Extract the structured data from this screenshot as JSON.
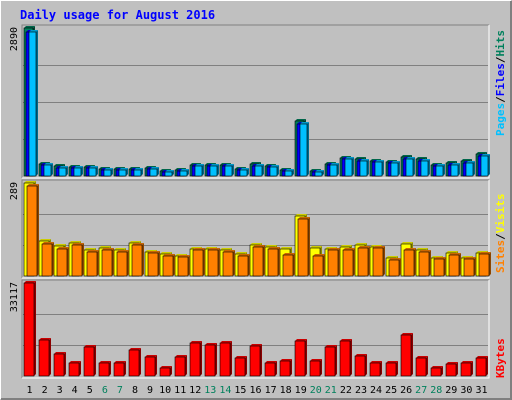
{
  "title": "Daily usage for August 2016",
  "colors": {
    "background": "#C0C0C0",
    "title": "#0000FF",
    "hits": "#00805C",
    "files": "#0000FF",
    "pages": "#00C0FF",
    "visits": "#FFFF00",
    "sites": "#FF8000",
    "kbytes": "#FF0000",
    "weekend": "#00805C",
    "weekday": "#000000"
  },
  "legend": {
    "hits": "Hits",
    "files": "Files",
    "pages": "Pages",
    "visits": "Visits",
    "sites": "Sites",
    "kbytes": "KBytes",
    "separator": "/"
  },
  "chart_data": [
    {
      "type": "bar",
      "panel": "hits-files-pages",
      "ymax_label": "2890",
      "ymax": 2890,
      "categories": [
        "1",
        "2",
        "3",
        "4",
        "5",
        "6",
        "7",
        "8",
        "9",
        "10",
        "11",
        "12",
        "13",
        "14",
        "15",
        "16",
        "17",
        "18",
        "19",
        "20",
        "21",
        "22",
        "23",
        "24",
        "25",
        "26",
        "27",
        "28",
        "29",
        "30",
        "31"
      ],
      "weekend_days": [
        "6",
        "7",
        "13",
        "14",
        "20",
        "21",
        "27",
        "28"
      ],
      "series": [
        {
          "key": "hits",
          "values": [
            2890,
            240,
            190,
            180,
            180,
            130,
            130,
            130,
            160,
            90,
            110,
            210,
            210,
            210,
            130,
            240,
            200,
            120,
            1070,
            100,
            240,
            360,
            330,
            300,
            280,
            380,
            330,
            220,
            250,
            290,
            420
          ]
        },
        {
          "key": "files",
          "values": [
            2810,
            210,
            160,
            150,
            160,
            110,
            110,
            110,
            130,
            70,
            90,
            190,
            190,
            190,
            110,
            200,
            170,
            100,
            1020,
            70,
            210,
            330,
            300,
            270,
            260,
            340,
            300,
            190,
            220,
            260,
            390
          ]
        },
        {
          "key": "pages",
          "values": [
            2810,
            210,
            160,
            150,
            160,
            110,
            110,
            110,
            130,
            70,
            90,
            190,
            190,
            190,
            110,
            200,
            170,
            100,
            1020,
            70,
            210,
            330,
            300,
            270,
            260,
            340,
            300,
            190,
            220,
            260,
            390
          ]
        }
      ]
    },
    {
      "type": "bar",
      "panel": "visits-sites",
      "ymax_label": "289",
      "ymax": 289,
      "categories": [
        "1",
        "2",
        "3",
        "4",
        "5",
        "6",
        "7",
        "8",
        "9",
        "10",
        "11",
        "12",
        "13",
        "14",
        "15",
        "16",
        "17",
        "18",
        "19",
        "20",
        "21",
        "22",
        "23",
        "24",
        "25",
        "26",
        "27",
        "28",
        "29",
        "30",
        "31"
      ],
      "series": [
        {
          "key": "visits",
          "values": [
            289,
            108,
            92,
            102,
            80,
            88,
            81,
            102,
            75,
            67,
            62,
            85,
            85,
            80,
            67,
            95,
            90,
            85,
            185,
            87,
            84,
            90,
            95,
            91,
            55,
            100,
            81,
            57,
            70,
            56,
            72
          ]
        },
        {
          "key": "sites",
          "values": [
            280,
            100,
            85,
            95,
            74,
            82,
            76,
            95,
            70,
            62,
            58,
            80,
            80,
            75,
            62,
            90,
            85,
            65,
            178,
            63,
            80,
            82,
            88,
            86,
            51,
            80,
            76,
            53,
            65,
            52,
            67
          ]
        }
      ]
    },
    {
      "type": "bar",
      "panel": "kbytes",
      "ymax_label": "33117",
      "ymax": 33117,
      "categories": [
        "1",
        "2",
        "3",
        "4",
        "5",
        "6",
        "7",
        "8",
        "9",
        "10",
        "11",
        "12",
        "13",
        "14",
        "15",
        "16",
        "17",
        "18",
        "19",
        "20",
        "21",
        "22",
        "23",
        "24",
        "25",
        "26",
        "27",
        "28",
        "29",
        "30",
        "31"
      ],
      "series": [
        {
          "key": "kbytes",
          "values": [
            33117,
            12800,
            7800,
            4700,
            10200,
            4700,
            4700,
            9400,
            6900,
            2800,
            6900,
            11600,
            11000,
            11800,
            6500,
            10600,
            4700,
            5500,
            12500,
            5400,
            10200,
            12300,
            7000,
            4500,
            4700,
            14600,
            6500,
            2800,
            4300,
            4700,
            6300
          ]
        }
      ]
    }
  ]
}
